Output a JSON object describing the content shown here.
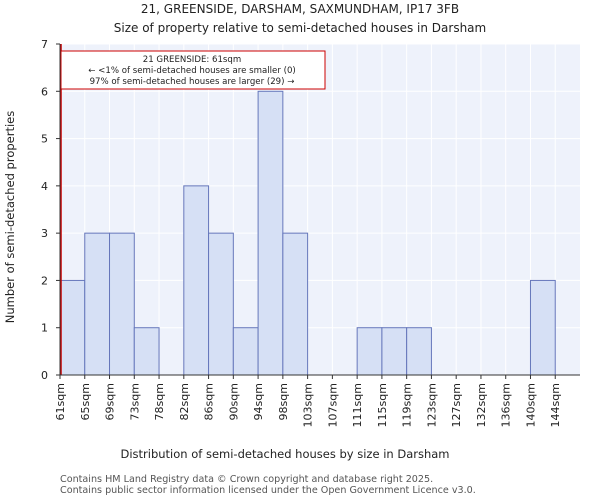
{
  "chart_data": {
    "type": "bar",
    "title": "21, GREENSIDE, DARSHAM, SAXMUNDHAM, IP17 3FB",
    "subtitle": "Size of property relative to semi-detached houses in Darsham",
    "xlabel": "Distribution of semi-detached houses by size in Darsham",
    "ylabel": "Number of semi-detached properties",
    "categories": [
      "61sqm",
      "65sqm",
      "69sqm",
      "73sqm",
      "78sqm",
      "82sqm",
      "86sqm",
      "90sqm",
      "94sqm",
      "98sqm",
      "103sqm",
      "107sqm",
      "111sqm",
      "115sqm",
      "119sqm",
      "123sqm",
      "127sqm",
      "132sqm",
      "136sqm",
      "140sqm",
      "144sqm"
    ],
    "values": [
      2,
      3,
      3,
      1,
      0,
      4,
      3,
      1,
      6,
      3,
      0,
      0,
      1,
      1,
      1,
      0,
      0,
      0,
      0,
      2,
      0
    ],
    "yticks": [
      0,
      1,
      2,
      3,
      4,
      5,
      6,
      7
    ],
    "ylim": [
      0,
      7
    ],
    "grid": true,
    "bar_color": "#d6e0f5",
    "bar_edge_color": "#6677bb",
    "marker_color": "#cc0000",
    "marker_category_index": 0,
    "annotation": {
      "line1": "21 GREENSIDE: 61sqm",
      "line2": "← <1% of semi-detached houses are smaller (0)",
      "line3": "97% of semi-detached houses are larger (29) →"
    }
  },
  "footer": {
    "line1": "Contains HM Land Registry data © Crown copyright and database right 2025.",
    "line2": "Contains public sector information licensed under the Open Government Licence v3.0."
  }
}
